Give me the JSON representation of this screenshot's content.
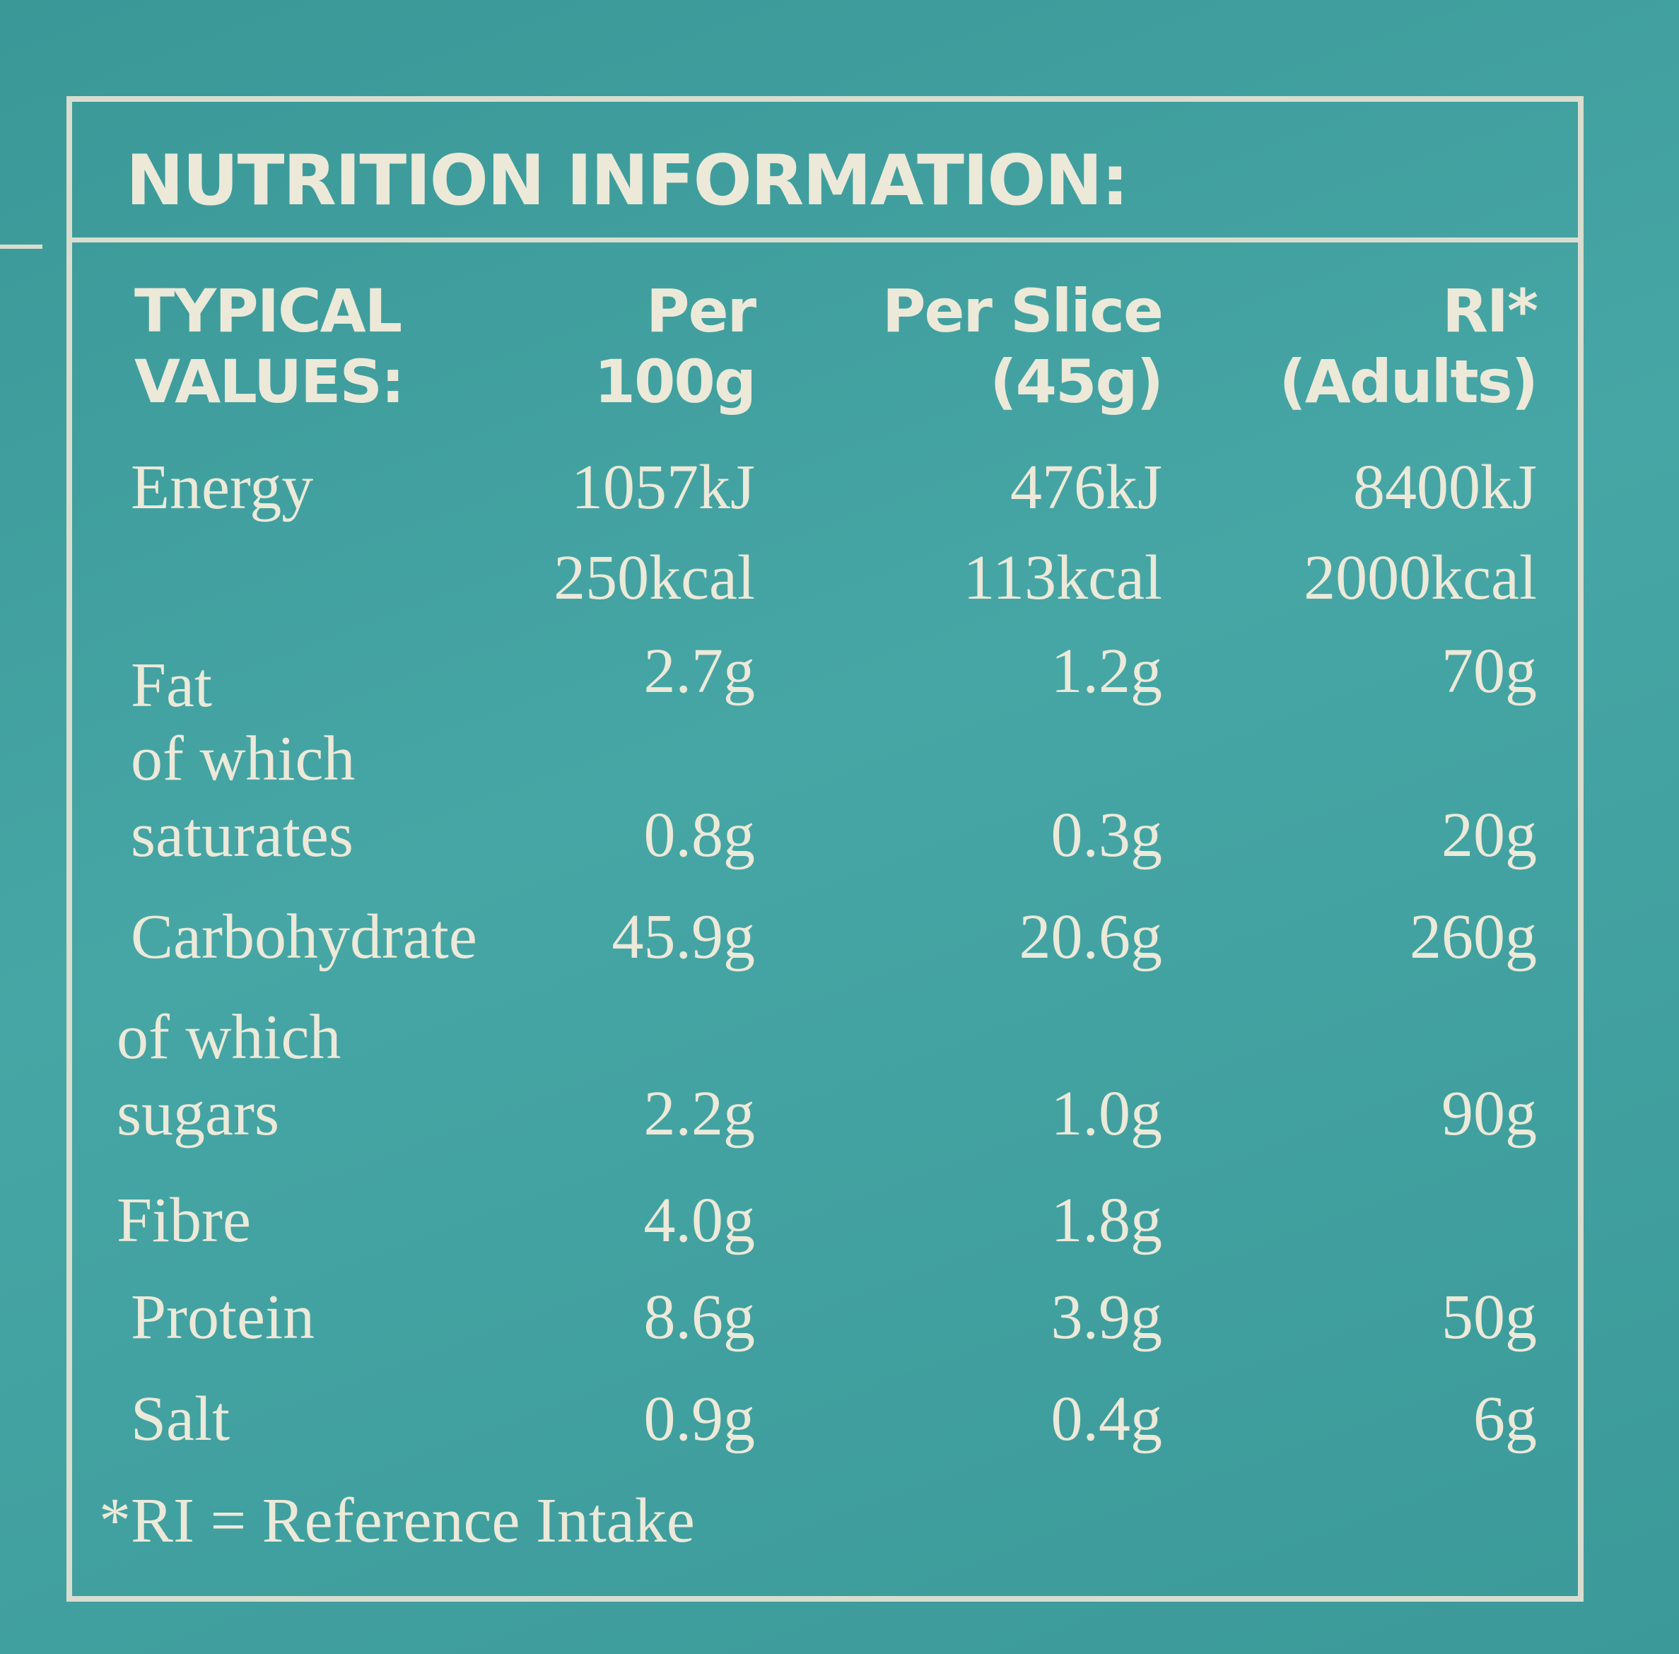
{
  "title": "NUTRITION INFORMATION:",
  "header": [
    [
      "TYPICAL",
      "VALUES:"
    ],
    [
      "Per",
      "100g"
    ],
    [
      "Per Slice",
      "(45g)"
    ],
    [
      "RI*",
      "(Adults)"
    ]
  ],
  "rows": [
    {
      "label": [
        "Energy"
      ],
      "values": [
        "1057kJ",
        "476kJ",
        "8400kJ"
      ]
    },
    {
      "values": [
        "250kcal",
        "113kcal",
        "2000kcal"
      ]
    },
    {
      "label": [
        "Fat"
      ],
      "values": [
        "2.7g",
        "1.2g",
        "70g"
      ]
    },
    {
      "label": [
        "of which",
        "saturates"
      ],
      "values": [
        "0.8g",
        "0.3g",
        "20g"
      ]
    },
    {
      "label": [
        "Carbohydrate"
      ],
      "values": [
        "45.9g",
        "20.6g",
        "260g"
      ]
    },
    {
      "label": [
        "of which",
        "sugars"
      ],
      "values": [
        "2.2g",
        "1.0g",
        "90g"
      ]
    },
    {
      "label": [
        "Fibre"
      ],
      "values": [
        "4.0g",
        "1.8g"
      ]
    },
    {
      "label": [
        "Protein"
      ],
      "values": [
        "8.6g",
        "3.9g",
        "50g"
      ]
    },
    {
      "label": [
        "Salt"
      ],
      "values": [
        "0.9g",
        "0.4g",
        "6g"
      ]
    }
  ],
  "footnote": "*RI = Reference Intake"
}
